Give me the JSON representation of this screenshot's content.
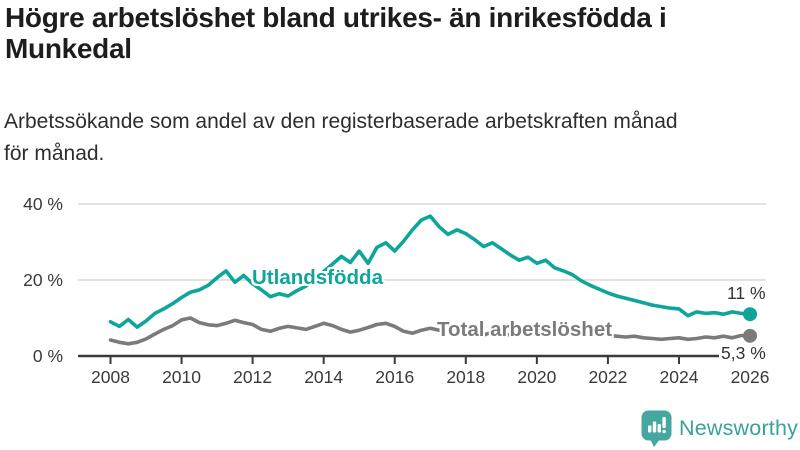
{
  "header": {
    "title_line1": "Högre arbetslöshet bland utrikes- än inrikesfödda i",
    "title_line2": "Munkedal",
    "subtitle_line1": "Arbetssökande som andel av den registerbaserade arbetskraften månad",
    "subtitle_line2": "för månad."
  },
  "colors": {
    "accent_teal": "#0ea59b",
    "series_gray": "#7b7b7b",
    "axis": "#3a3a3a",
    "axis_text": "#3a3a3a",
    "gridline": "#d8d8d8",
    "title_text": "#1d1d1d",
    "logo_teal": "#44a7a0"
  },
  "chart_data": {
    "type": "line",
    "title": "Högre arbetslöshet bland utrikes- än inrikesfödda i Munkedal",
    "subtitle": "Arbetssökande som andel av den registerbaserade arbetskraften månad för månad.",
    "xlabel": "",
    "ylabel": "",
    "grid": true,
    "legend_position": "inline-labels-on-lines",
    "x_unit": "year (quarterly samples of monthly data)",
    "xlim": [
      2007.2,
      2026.4
    ],
    "ylim": [
      0,
      42
    ],
    "x_ticks": [
      2008,
      2010,
      2012,
      2014,
      2016,
      2018,
      2020,
      2022,
      2024,
      2026
    ],
    "y_ticks": [
      {
        "value": 0,
        "label": "0 %"
      },
      {
        "value": 20,
        "label": "20 %"
      },
      {
        "value": 40,
        "label": "40 %"
      }
    ],
    "x": [
      2008.0,
      2008.25,
      2008.5,
      2008.75,
      2009.0,
      2009.25,
      2009.5,
      2009.75,
      2010.0,
      2010.25,
      2010.5,
      2010.75,
      2011.0,
      2011.25,
      2011.5,
      2011.75,
      2012.0,
      2012.25,
      2012.5,
      2012.75,
      2013.0,
      2013.25,
      2013.5,
      2013.75,
      2014.0,
      2014.25,
      2014.5,
      2014.75,
      2015.0,
      2015.25,
      2015.5,
      2015.75,
      2016.0,
      2016.25,
      2016.5,
      2016.75,
      2017.0,
      2017.25,
      2017.5,
      2017.75,
      2018.0,
      2018.25,
      2018.5,
      2018.75,
      2019.0,
      2019.25,
      2019.5,
      2019.75,
      2020.0,
      2020.25,
      2020.5,
      2020.75,
      2021.0,
      2021.25,
      2021.5,
      2021.75,
      2022.0,
      2022.25,
      2022.5,
      2022.75,
      2023.0,
      2023.25,
      2023.5,
      2023.75,
      2024.0,
      2024.25,
      2024.5,
      2024.75,
      2025.0,
      2025.25,
      2025.5,
      2025.75,
      2026.0
    ],
    "series": [
      {
        "id": "utlandsfodda",
        "name": "Utlandsfödda",
        "color": "#0ea59b",
        "end_label": "11 %",
        "values": [
          9.0,
          7.8,
          9.6,
          7.6,
          9.2,
          11.2,
          12.4,
          13.8,
          15.4,
          16.8,
          17.4,
          18.6,
          20.6,
          22.4,
          19.4,
          21.2,
          19.0,
          17.4,
          15.6,
          16.4,
          15.8,
          17.2,
          18.4,
          20.2,
          22.2,
          24.2,
          26.2,
          24.6,
          27.6,
          24.4,
          28.6,
          29.8,
          27.6,
          30.2,
          33.2,
          35.8,
          36.8,
          34.0,
          32.0,
          33.2,
          32.2,
          30.6,
          28.8,
          29.8,
          28.2,
          26.6,
          25.2,
          26.0,
          24.4,
          25.2,
          23.2,
          22.4,
          21.4,
          19.8,
          18.6,
          17.6,
          16.6,
          15.8,
          15.2,
          14.6,
          14.0,
          13.4,
          13.0,
          12.6,
          12.4,
          10.6,
          11.6,
          11.2,
          11.4,
          11.0,
          11.6,
          11.2,
          11.0
        ]
      },
      {
        "id": "total",
        "name": "Total arbetslöshet",
        "color": "#7b7b7b",
        "end_label": "5,3 %",
        "values": [
          4.2,
          3.6,
          3.2,
          3.6,
          4.5,
          5.8,
          7.0,
          8.0,
          9.5,
          10.0,
          8.8,
          8.2,
          8.0,
          8.6,
          9.4,
          8.8,
          8.3,
          7.0,
          6.5,
          7.3,
          7.8,
          7.4,
          7.0,
          7.8,
          8.6,
          8.0,
          7.0,
          6.3,
          6.8,
          7.5,
          8.3,
          8.6,
          7.8,
          6.5,
          6.0,
          6.8,
          7.3,
          6.8,
          6.3,
          7.0,
          6.5,
          5.8,
          5.5,
          6.3,
          6.0,
          5.5,
          5.8,
          6.5,
          6.2,
          7.2,
          7.6,
          7.2,
          6.8,
          6.4,
          6.0,
          5.6,
          5.4,
          5.2,
          5.0,
          5.2,
          4.8,
          4.6,
          4.4,
          4.6,
          4.8,
          4.4,
          4.6,
          5.0,
          4.8,
          5.2,
          4.8,
          5.4,
          5.3
        ]
      }
    ]
  },
  "logo": {
    "text": "Newsworthy",
    "icon": "newsworthy-speech-bubble-bar-chart-icon"
  }
}
